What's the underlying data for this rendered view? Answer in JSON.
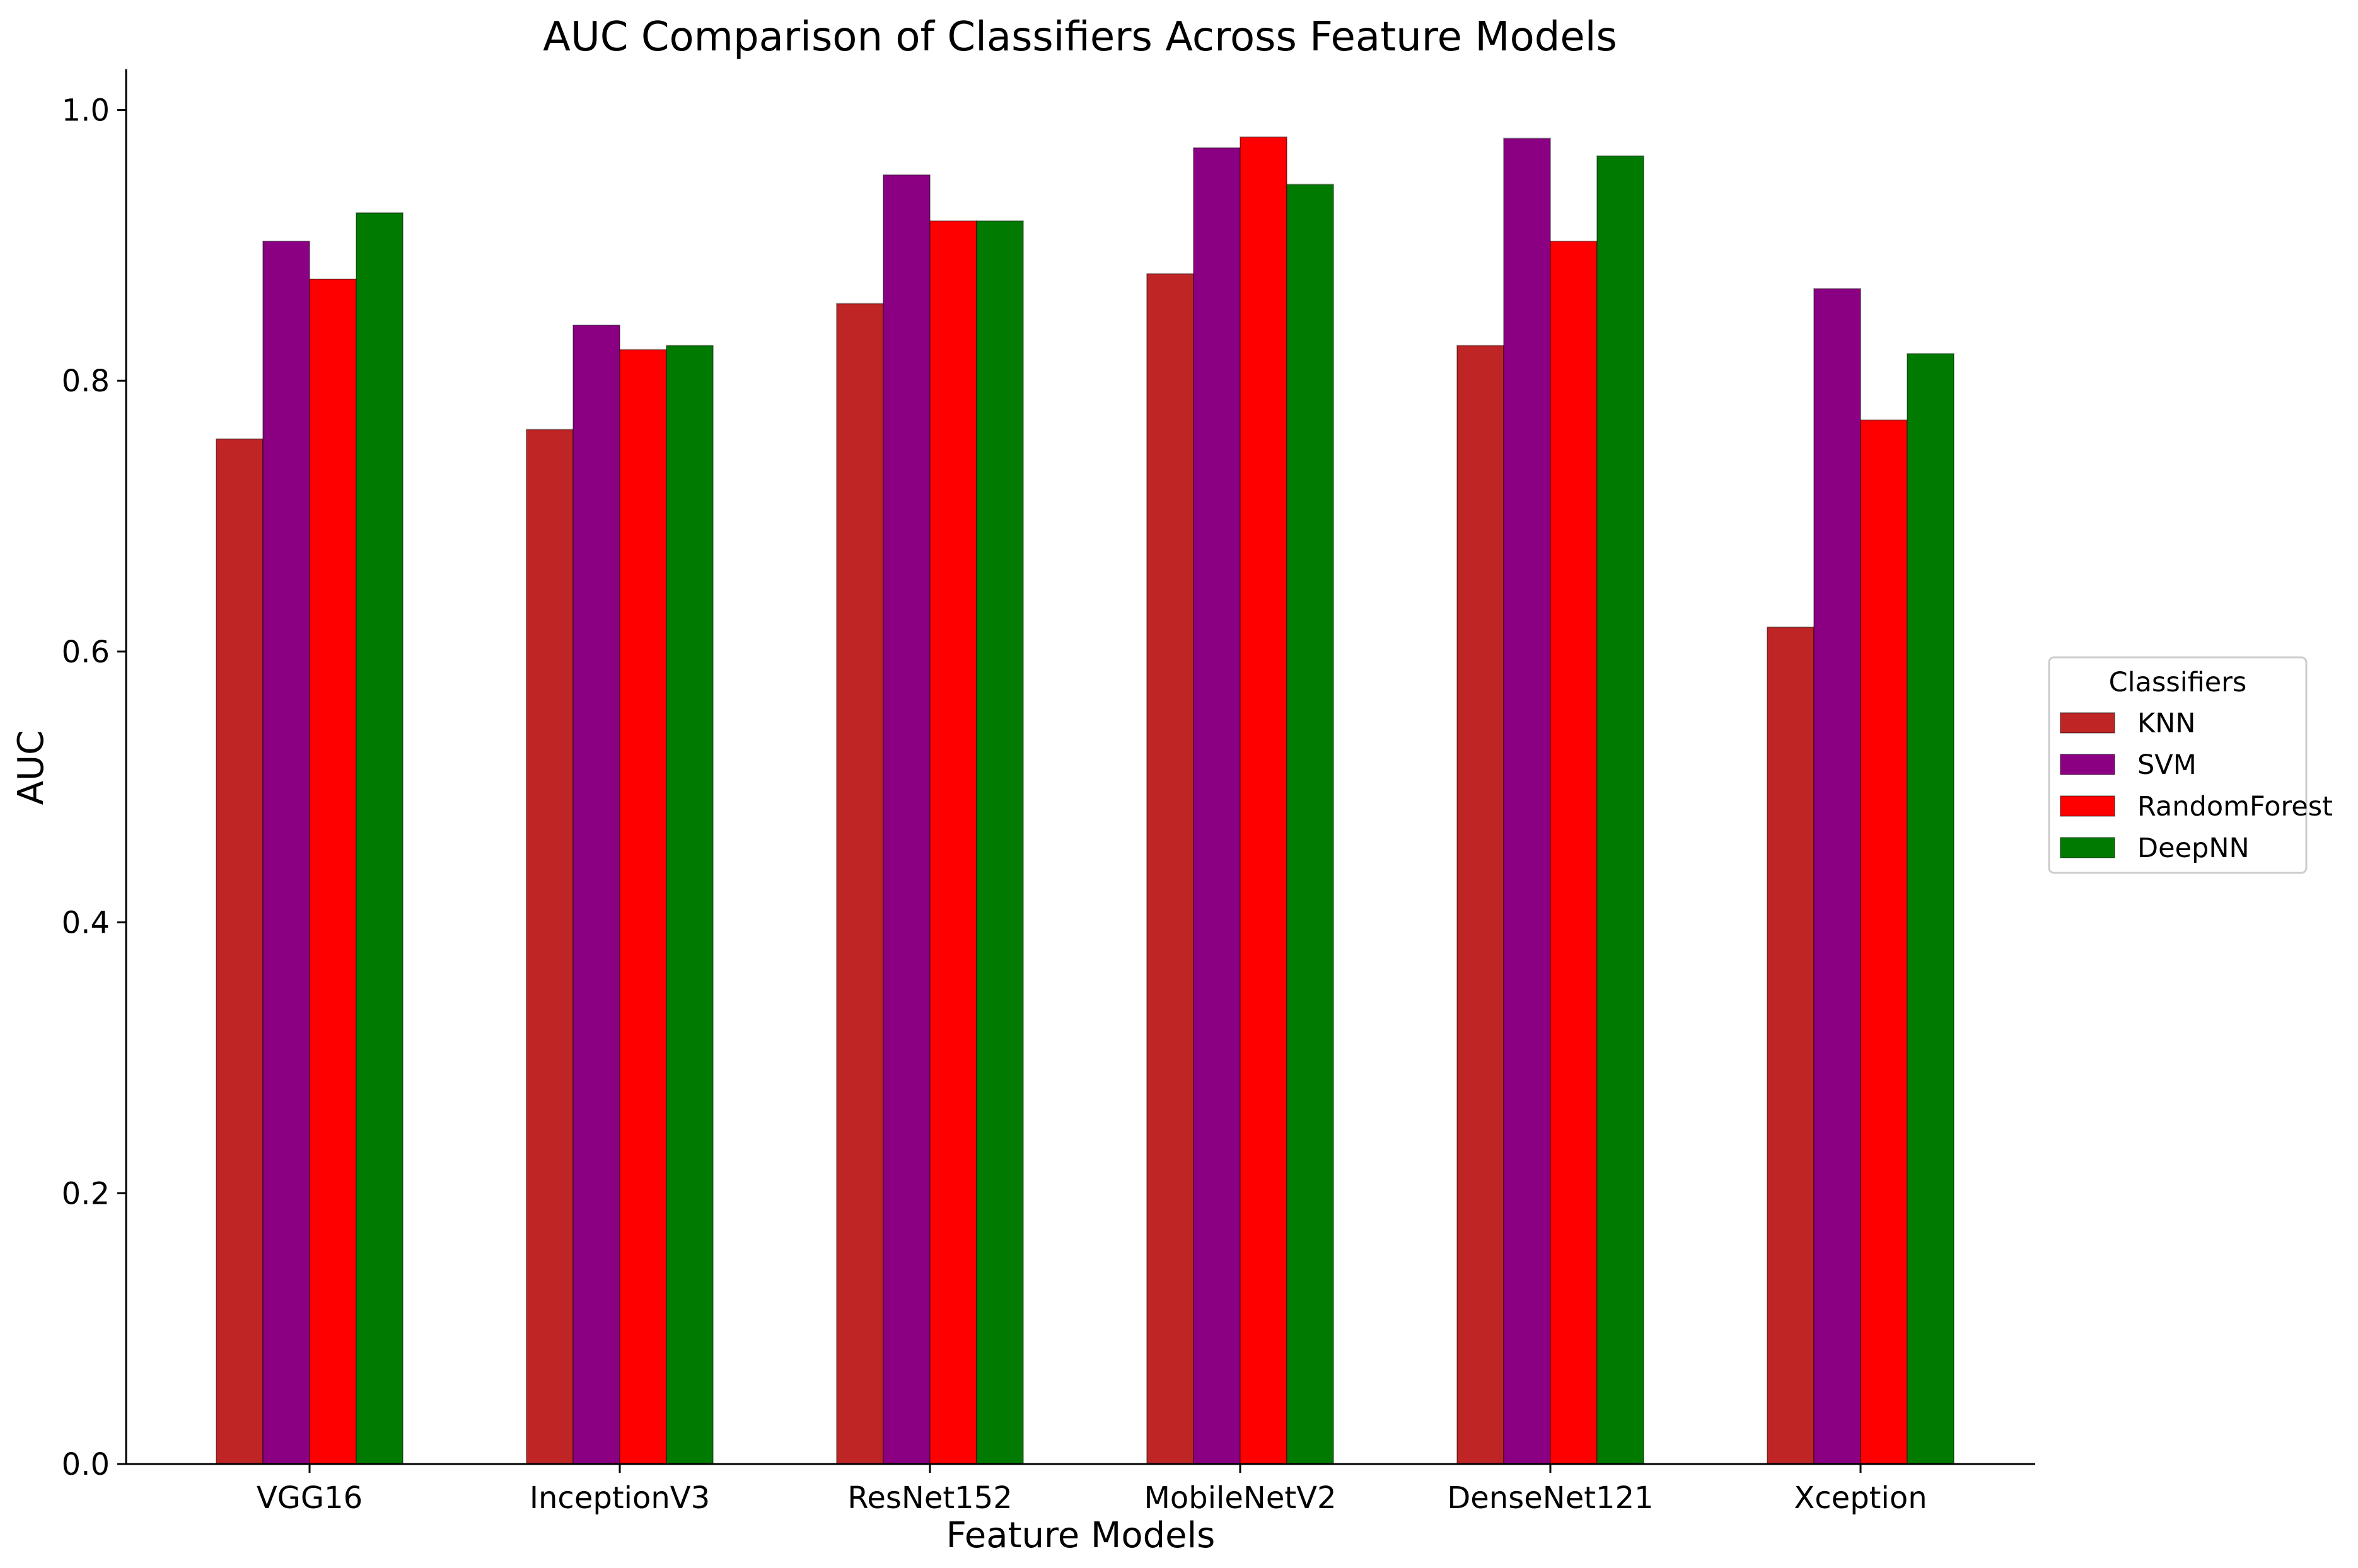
{
  "chart_data": {
    "type": "bar",
    "title": "AUC Comparison of Classifiers Across Feature Models",
    "xlabel": "Feature Models",
    "ylabel": "AUC",
    "ylim": [
      0,
      1.03
    ],
    "yticks": [
      "0.0",
      "0.2",
      "0.4",
      "0.6",
      "0.8",
      "1.0"
    ],
    "categories": [
      "VGG16",
      "InceptionV3",
      "ResNet152",
      "MobileNetV2",
      "DenseNet121",
      "Xception"
    ],
    "legend": {
      "title": "Classifiers",
      "placement": "center-right"
    },
    "grid": false,
    "series": [
      {
        "name": "KNN",
        "color": "#c02525",
        "values": [
          0.757,
          0.764,
          0.857,
          0.879,
          0.826,
          0.618
        ]
      },
      {
        "name": "SVM",
        "color": "#8b0083",
        "values": [
          0.903,
          0.841,
          0.952,
          0.972,
          0.979,
          0.868
        ]
      },
      {
        "name": "RandomForest",
        "color": "#ff0000",
        "values": [
          0.875,
          0.823,
          0.918,
          0.98,
          0.903,
          0.771
        ]
      },
      {
        "name": "DeepNN",
        "color": "#007a00",
        "values": [
          0.924,
          0.826,
          0.918,
          0.945,
          0.966,
          0.82
        ]
      }
    ]
  }
}
